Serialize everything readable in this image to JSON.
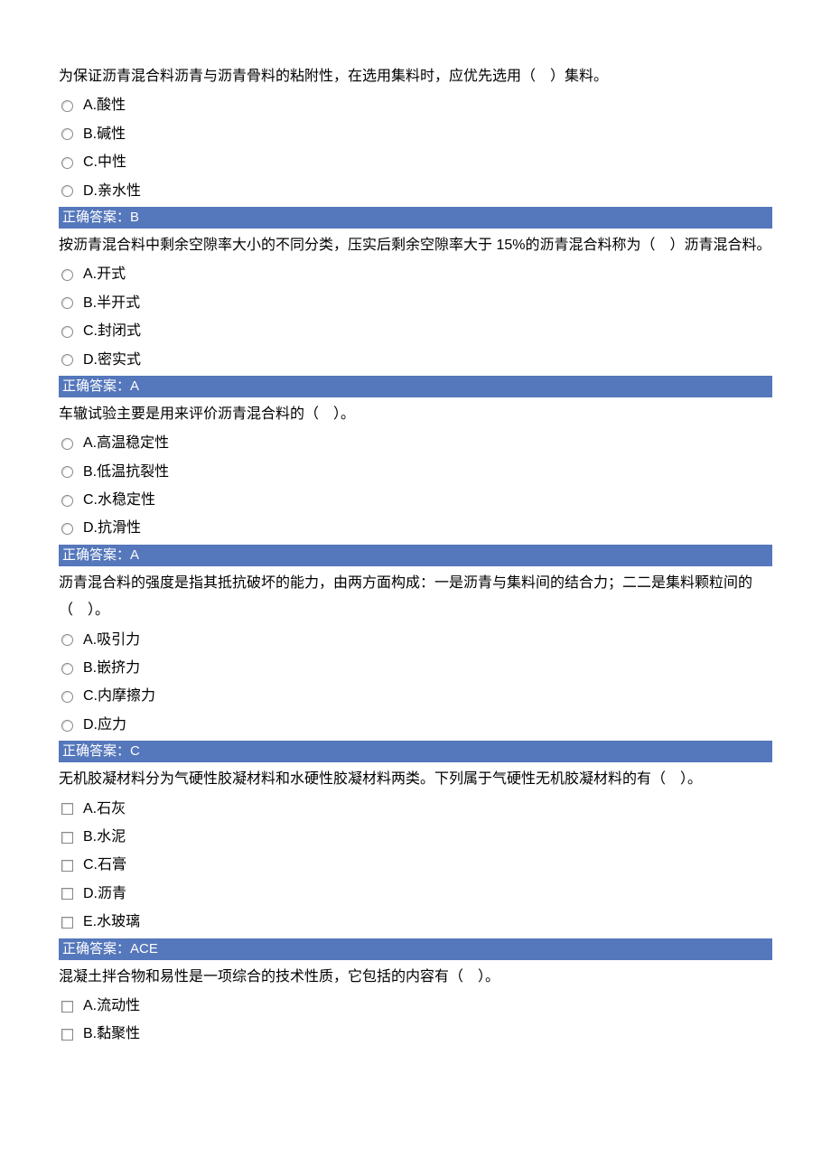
{
  "colors": {
    "answer_bar_bg": "#5577bb",
    "answer_bar_text": "#ffffff",
    "body_text": "#000000",
    "background": "#ffffff",
    "input_border": "#888888"
  },
  "typography": {
    "font_family": "Microsoft YaHei, SimSun, Arial, sans-serif",
    "body_fontsize": 16,
    "answer_fontsize": 15,
    "line_height": 1.9
  },
  "answer_prefix": "正确答案：",
  "questions": [
    {
      "text": "为保证沥青混合料沥青与沥青骨料的粘附性，在选用集料时，应优先选用（　）集料。",
      "type": "radio",
      "options": [
        "A.酸性",
        "B.碱性",
        "C.中性",
        "D.亲水性"
      ],
      "answer": "B"
    },
    {
      "text": "按沥青混合料中剩余空隙率大小的不同分类，压实后剩余空隙率大于 15%的沥青混合料称为（　）沥青混合料。",
      "type": "radio",
      "options": [
        "A.开式",
        "B.半开式",
        "C.封闭式",
        "D.密实式"
      ],
      "answer": "A"
    },
    {
      "text": "车辙试验主要是用来评价沥青混合料的（　）。",
      "type": "radio",
      "options": [
        "A.高温稳定性",
        "B.低温抗裂性",
        "C.水稳定性",
        "D.抗滑性"
      ],
      "answer": "A"
    },
    {
      "text": "沥青混合料的强度是指其抵抗破坏的能力，由两方面构成：一是沥青与集料间的结合力；二二是集料颗粒间的（　）。",
      "type": "radio",
      "options": [
        "A.吸引力",
        "B.嵌挤力",
        "C.内摩擦力",
        "D.应力"
      ],
      "answer": "C"
    },
    {
      "text": "无机胶凝材料分为气硬性胶凝材料和水硬性胶凝材料两类。下列属于气硬性无机胶凝材料的有（　）。",
      "type": "checkbox",
      "options": [
        "A.石灰",
        "B.水泥",
        "C.石膏",
        "D.沥青",
        "E.水玻璃"
      ],
      "answer": "ACE"
    },
    {
      "text": "混凝土拌合物和易性是一项综合的技术性质，它包括的内容有（　）。",
      "type": "checkbox",
      "options": [
        "A.流动性",
        "B.黏聚性"
      ],
      "answer": null
    }
  ]
}
